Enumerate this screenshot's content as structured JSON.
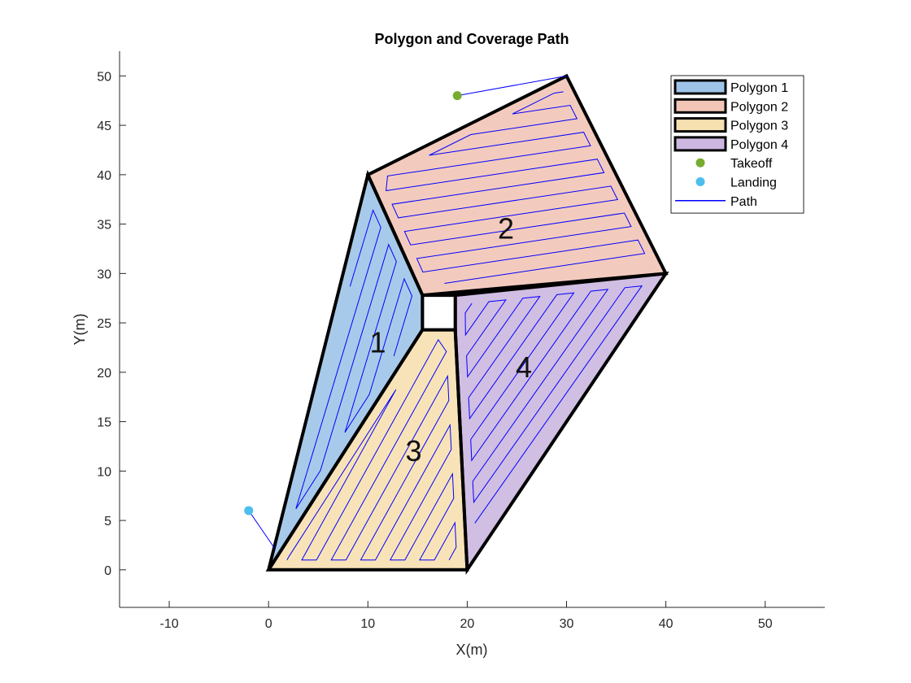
{
  "chart_data": {
    "type": "area",
    "title": "Polygon and Coverage Path",
    "xlabel": "X(m)",
    "ylabel": "Y(m)",
    "xlim": [
      -15,
      56
    ],
    "ylim": [
      -3.8,
      52.5
    ],
    "xticks": [
      -10,
      0,
      10,
      20,
      30,
      40,
      50
    ],
    "yticks": [
      0,
      5,
      10,
      15,
      20,
      25,
      30,
      35,
      40,
      45,
      50
    ],
    "grid": false,
    "legend_position": "top-right",
    "polygons": [
      {
        "name": "Polygon 1",
        "label": "1",
        "color": "#9fc4e8",
        "vertices": [
          [
            0,
            0
          ],
          [
            10,
            40
          ],
          [
            15.5,
            27.8
          ],
          [
            15.5,
            24.3
          ]
        ],
        "label_pos": [
          11,
          23
        ],
        "hatch": {
          "dir": [
            0.3,
            1.0
          ],
          "spacing": 1.25,
          "inset": 1.0
        }
      },
      {
        "name": "Polygon 2",
        "label": "2",
        "color": "#f2c5b7",
        "vertices": [
          [
            10,
            40
          ],
          [
            30,
            50
          ],
          [
            40,
            30
          ],
          [
            15.5,
            27.8
          ]
        ],
        "label_pos": [
          23.9,
          34.5
        ],
        "hatch": {
          "dir": [
            1.0,
            0.15
          ],
          "spacing": 1.45,
          "inset": 1.0
        }
      },
      {
        "name": "Polygon 3",
        "label": "3",
        "color": "#f7e0b0",
        "vertices": [
          [
            0,
            0
          ],
          [
            20,
            0
          ],
          [
            18.8,
            24.3
          ],
          [
            15.5,
            24.3
          ]
        ],
        "label_pos": [
          14.6,
          12
        ],
        "hatch": {
          "dir": [
            0.55,
            1.0
          ],
          "spacing": 1.3,
          "inset": 1.0
        }
      },
      {
        "name": "Polygon 4",
        "label": "4",
        "color": "#ccb7e0",
        "vertices": [
          [
            18.8,
            24.3
          ],
          [
            18.8,
            27.8
          ],
          [
            40,
            30
          ],
          [
            20,
            0
          ]
        ],
        "label_pos": [
          25.7,
          20.5
        ],
        "hatch": {
          "dir": [
            0.7,
            1.0
          ],
          "spacing": 1.3,
          "inset": 1.0
        }
      }
    ],
    "hole": [
      [
        15.5,
        24.3
      ],
      [
        18.8,
        24.3
      ],
      [
        18.8,
        27.8
      ],
      [
        15.5,
        27.8
      ]
    ],
    "takeoff": {
      "name": "Takeoff",
      "x": 19,
      "y": 48,
      "color": "#77ac30"
    },
    "landing": {
      "name": "Landing",
      "x": -2,
      "y": 6,
      "color": "#4dbeee"
    },
    "path": {
      "name": "Path",
      "color": "#0000ff",
      "connectors": [
        [
          [
            19,
            48
          ],
          [
            30,
            50
          ]
        ],
        [
          [
            -2,
            6
          ],
          [
            0.6,
            2.2
          ]
        ]
      ]
    },
    "legend_items": [
      {
        "name": "Polygon 1",
        "kind": "patch",
        "color": "#9fc4e8"
      },
      {
        "name": "Polygon 2",
        "kind": "patch",
        "color": "#f2c5b7"
      },
      {
        "name": "Polygon 3",
        "kind": "patch",
        "color": "#f7e0b0"
      },
      {
        "name": "Polygon 4",
        "kind": "patch",
        "color": "#ccb7e0"
      },
      {
        "name": "Takeoff",
        "kind": "marker",
        "color": "#77ac30"
      },
      {
        "name": "Landing",
        "kind": "marker",
        "color": "#4dbeee"
      },
      {
        "name": "Path",
        "kind": "line",
        "color": "#0000ff"
      }
    ]
  }
}
